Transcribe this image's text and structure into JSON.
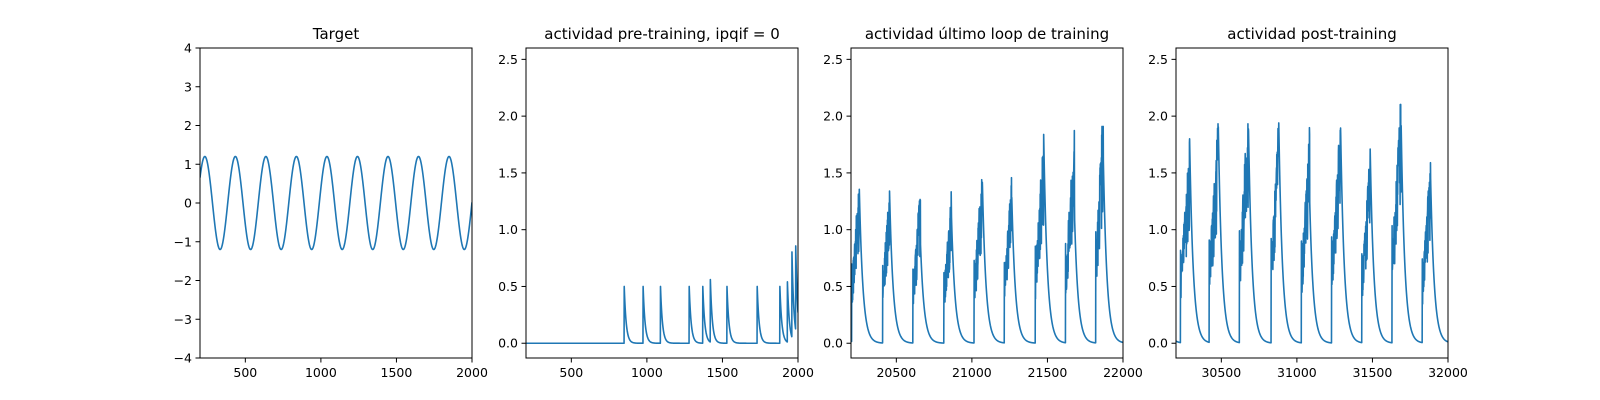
{
  "chart_data": [
    {
      "type": "line",
      "title": "Target",
      "xlabel": "",
      "ylabel": "",
      "xlim": [
        200,
        2000
      ],
      "ylim": [
        -4,
        4
      ],
      "xticks": [
        500,
        1000,
        1500,
        2000
      ],
      "xtick_labels": [
        "500",
        "1000",
        "1500",
        "2000"
      ],
      "yticks": [
        -4,
        -3,
        -2,
        -1,
        0,
        1,
        2,
        3,
        4
      ],
      "ytick_labels": [
        "−4",
        "−3",
        "−2",
        "−1",
        "0",
        "1",
        "2",
        "3",
        "4"
      ],
      "grid": false,
      "series": [
        {
          "color": "#1f77b4",
          "kind": "sine",
          "amplitude": 1.2,
          "period": 202,
          "peak_x": [
            232,
            434,
            636,
            838,
            1040,
            1242,
            1444,
            1646,
            1848
          ],
          "trough_x": [
            333,
            535,
            737,
            939,
            1141,
            1343,
            1545,
            1747,
            1949
          ],
          "end_value": 0.4
        }
      ]
    },
    {
      "type": "line",
      "title": "actividad pre-training, ipqif = 0",
      "xlabel": "",
      "ylabel": "",
      "xlim": [
        200,
        2000
      ],
      "ylim": [
        -0.13,
        2.6
      ],
      "xticks": [
        500,
        1000,
        1500,
        2000
      ],
      "xtick_labels": [
        "500",
        "1000",
        "1500",
        "2000"
      ],
      "yticks": [
        0.0,
        0.5,
        1.0,
        1.5,
        2.0,
        2.5
      ],
      "ytick_labels": [
        "0.0",
        "0.5",
        "1.0",
        "1.5",
        "2.0",
        "2.5"
      ],
      "grid": false,
      "series": [
        {
          "color": "#1f77b4",
          "kind": "spike-decay",
          "baseline": 0.0,
          "spikes": [
            {
              "x": 850,
              "height": 0.5
            },
            {
              "x": 975,
              "height": 0.5
            },
            {
              "x": 1090,
              "height": 0.5
            },
            {
              "x": 1280,
              "height": 0.5
            },
            {
              "x": 1370,
              "height": 0.5
            },
            {
              "x": 1420,
              "height": 0.55
            },
            {
              "x": 1530,
              "height": 0.5
            },
            {
              "x": 1730,
              "height": 0.5
            },
            {
              "x": 1880,
              "height": 0.5
            },
            {
              "x": 1930,
              "height": 0.53
            },
            {
              "x": 1960,
              "height": 0.75
            },
            {
              "x": 1985,
              "height": 0.74
            }
          ]
        }
      ]
    },
    {
      "type": "line",
      "title": "actividad último loop de training",
      "xlabel": "",
      "ylabel": "",
      "xlim": [
        20200,
        22000
      ],
      "ylim": [
        -0.13,
        2.6
      ],
      "xticks": [
        20500,
        21000,
        21500,
        22000
      ],
      "xtick_labels": [
        "20500",
        "21000",
        "21500",
        "22000"
      ],
      "yticks": [
        0.0,
        0.5,
        1.0,
        1.5,
        2.0,
        2.5
      ],
      "ytick_labels": [
        "0.0",
        "0.5",
        "1.0",
        "1.5",
        "2.0",
        "2.5"
      ],
      "grid": false,
      "series": [
        {
          "color": "#1f77b4",
          "kind": "burst-decay",
          "bursts": [
            {
              "start": 20205,
              "end": 20255,
              "peak": 1.55
            },
            {
              "start": 20410,
              "end": 20455,
              "peak": 1.52
            },
            {
              "start": 20610,
              "end": 20660,
              "peak": 1.45
            },
            {
              "start": 20815,
              "end": 20865,
              "peak": 1.38
            },
            {
              "start": 21015,
              "end": 21070,
              "peak": 1.62
            },
            {
              "start": 21215,
              "end": 21265,
              "peak": 1.58
            },
            {
              "start": 21420,
              "end": 21475,
              "peak": 1.9
            },
            {
              "start": 21620,
              "end": 21680,
              "peak": 1.95
            },
            {
              "start": 21820,
              "end": 21870,
              "peak": 2.18
            }
          ]
        }
      ]
    },
    {
      "type": "line",
      "title": "actividad post-training",
      "xlabel": "",
      "ylabel": "",
      "xlim": [
        30200,
        32000
      ],
      "ylim": [
        -0.13,
        2.6
      ],
      "xticks": [
        30500,
        31000,
        31500,
        32000
      ],
      "xtick_labels": [
        "30500",
        "31000",
        "31500",
        "32000"
      ],
      "yticks": [
        0.0,
        0.5,
        1.0,
        1.5,
        2.0,
        2.5
      ],
      "ytick_labels": [
        "0.0",
        "0.5",
        "1.0",
        "1.5",
        "2.0",
        "2.5"
      ],
      "grid": false,
      "series": [
        {
          "color": "#1f77b4",
          "kind": "burst-decay",
          "bursts": [
            {
              "start": 30230,
              "end": 30290,
              "peak": 1.82
            },
            {
              "start": 30420,
              "end": 30480,
              "peak": 2.02
            },
            {
              "start": 30620,
              "end": 30680,
              "peak": 2.2
            },
            {
              "start": 30830,
              "end": 30880,
              "peak": 2.05
            },
            {
              "start": 31030,
              "end": 31085,
              "peak": 2.0
            },
            {
              "start": 31230,
              "end": 31290,
              "peak": 2.08
            },
            {
              "start": 31430,
              "end": 31485,
              "peak": 1.75
            },
            {
              "start": 31630,
              "end": 31690,
              "peak": 2.3
            },
            {
              "start": 31830,
              "end": 31885,
              "peak": 1.65
            }
          ]
        }
      ]
    }
  ]
}
